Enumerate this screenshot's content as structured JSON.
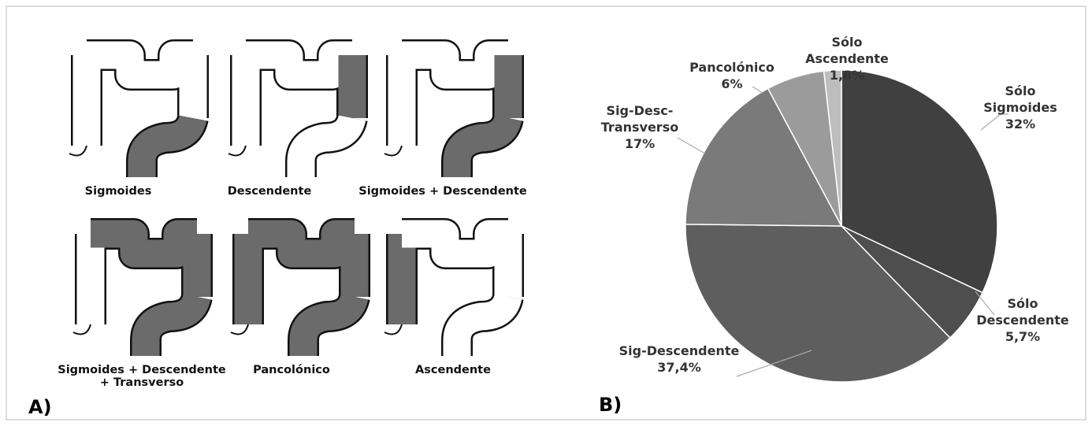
{
  "panel_a": {
    "label": "A)",
    "diagrams": [
      "Sigmoides",
      "Descendente",
      "Sigmoides + Descendente",
      "Sigmoides + Descendente + Transverso",
      "Pancolónico",
      "Ascendente"
    ]
  },
  "chart_data": {
    "type": "pie",
    "label": "B)",
    "categories": [
      "Sólo Sigmoides",
      "Sólo Descendente",
      "Sig-Descendente",
      "Sig-Desc-Transverso",
      "Pancolónico",
      "Sólo Ascendente"
    ],
    "values": [
      32,
      5.7,
      37.4,
      17,
      6,
      1.8
    ],
    "value_labels": [
      "32%",
      "5,7%",
      "37,4%",
      "17%",
      "6%",
      "1,8%"
    ],
    "colors": [
      "#404040",
      "#4e4e4e",
      "#5e5e5e",
      "#7a7a7a",
      "#9b9b9b",
      "#bdbdbd"
    ]
  }
}
